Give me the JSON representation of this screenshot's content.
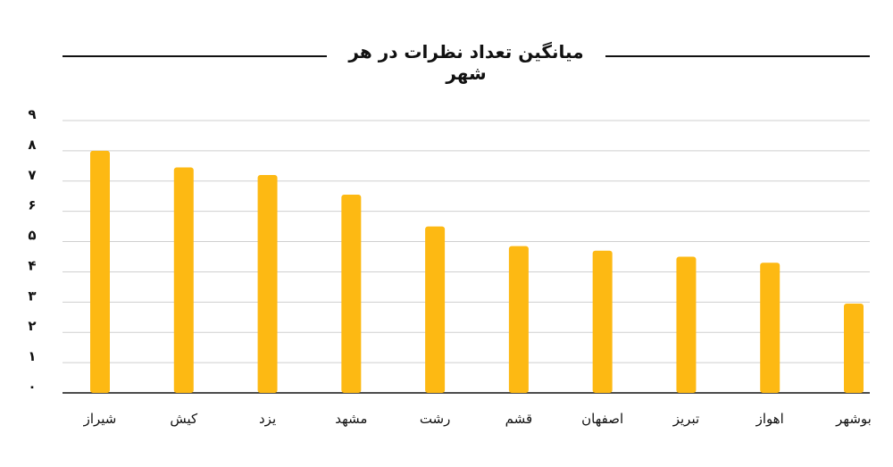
{
  "title": "میانگین تعداد نظرات در هر شهر",
  "chart_data": {
    "type": "bar",
    "title": "میانگین تعداد نظرات در هر شهر",
    "categories": [
      "شیراز",
      "کیش",
      "یزد",
      "مشهد",
      "رشت",
      "قشم",
      "اصفهان",
      "تبریز",
      "اهواز",
      "بوشهر"
    ],
    "values": [
      8.0,
      7.45,
      7.2,
      6.55,
      5.5,
      4.85,
      4.7,
      4.5,
      4.3,
      2.95
    ],
    "ylim": [
      0,
      9
    ],
    "yticks": [
      0,
      1,
      2,
      3,
      4,
      5,
      6,
      7,
      8,
      9
    ],
    "ytick_labels": [
      "۰",
      "۱",
      "۲",
      "۳",
      "۴",
      "۵",
      "۶",
      "۷",
      "۸",
      "۹"
    ],
    "grid": true,
    "bar_color": "#FDB913",
    "grid_color": "#CFCFCF",
    "xlabel": "",
    "ylabel": ""
  }
}
